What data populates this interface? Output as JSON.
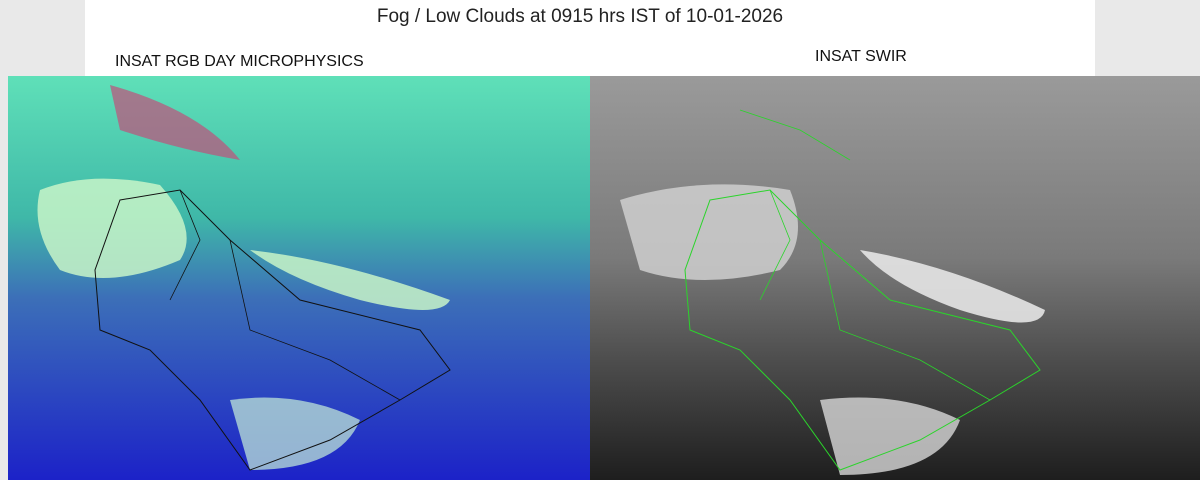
{
  "header": {
    "title": "Fog / Low Clouds at 0915 hrs IST of 10-01-2026"
  },
  "panels": [
    {
      "label": "INSAT RGB DAY MICROPHYSICS"
    },
    {
      "label": "INSAT SWIR"
    }
  ]
}
